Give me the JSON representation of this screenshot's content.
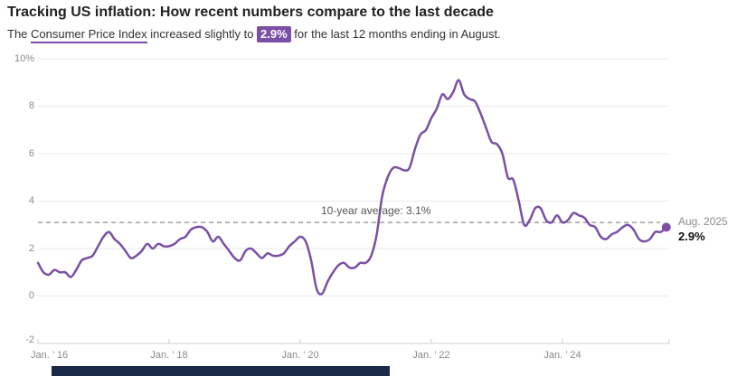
{
  "header": {
    "title": "Tracking US inflation: How recent numbers compare to the last decade",
    "subtitle_prefix": "The ",
    "subtitle_link": "Consumer Price Index",
    "subtitle_mid": " increased slightly to ",
    "subtitle_badge": "2.9%",
    "subtitle_suffix": " for the last 12 months ending in August."
  },
  "chart_data": {
    "type": "line",
    "title": "Tracking US inflation: How recent numbers compare to the last decade",
    "subtitle": "The Consumer Price Index increased slightly to 2.9% for the last 12 months ending in August.",
    "x_start": "Jan 2016",
    "x_end": "Aug 2025",
    "x_frequency": "monthly",
    "series": [
      {
        "name": "CPI year-over-year % change",
        "values": [
          1.4,
          1.0,
          0.9,
          1.1,
          1.0,
          1.0,
          0.8,
          1.1,
          1.5,
          1.6,
          1.7,
          2.1,
          2.5,
          2.7,
          2.4,
          2.2,
          1.9,
          1.6,
          1.7,
          1.9,
          2.2,
          2.0,
          2.2,
          2.1,
          2.1,
          2.2,
          2.4,
          2.5,
          2.8,
          2.9,
          2.9,
          2.7,
          2.3,
          2.5,
          2.2,
          1.9,
          1.6,
          1.5,
          1.9,
          2.0,
          1.8,
          1.6,
          1.8,
          1.7,
          1.7,
          1.8,
          2.1,
          2.3,
          2.5,
          2.3,
          1.5,
          0.3,
          0.1,
          0.6,
          1.0,
          1.3,
          1.4,
          1.2,
          1.2,
          1.4,
          1.4,
          1.7,
          2.6,
          4.2,
          5.0,
          5.4,
          5.4,
          5.3,
          5.4,
          6.2,
          6.8,
          7.0,
          7.5,
          7.9,
          8.5,
          8.3,
          8.6,
          9.1,
          8.5,
          8.3,
          8.2,
          7.7,
          7.1,
          6.5,
          6.4,
          6.0,
          5.0,
          4.9,
          4.0,
          3.0,
          3.2,
          3.7,
          3.7,
          3.2,
          3.1,
          3.4,
          3.1,
          3.2,
          3.5,
          3.4,
          3.3,
          3.0,
          2.9,
          2.5,
          2.4,
          2.6,
          2.7,
          2.9,
          3.0,
          2.8,
          2.4,
          2.3,
          2.4,
          2.7,
          2.7,
          2.9
        ]
      }
    ],
    "ylim": [
      -2,
      10
    ],
    "y_tick_values": [
      10,
      8,
      6,
      4,
      2,
      0,
      -2
    ],
    "y_tick_labels": [
      "10%",
      "8",
      "6",
      "4",
      "2",
      "0",
      "-2"
    ],
    "x_tick_labels": [
      "Jan. ’ 16",
      "Jan. ’ 18",
      "Jan. ’ 20",
      "Jan. ’ 22",
      "Jan. ’ 24"
    ],
    "grid": "horizontal",
    "legend_position": "none",
    "average_line": {
      "value": 3.1,
      "label": "10-year average: 3.1%",
      "style": "dashed"
    },
    "end_label": {
      "date": "Aug. 2025",
      "value": "2.9%"
    },
    "colors": {
      "line": "#7a4fa5",
      "accent": "#7a4fa5",
      "gridline": "#e9e9e9",
      "baseline": "#cccccc",
      "dashed": "#8c8c8c",
      "end_dot": "#7a4fa5",
      "bottom_bar": "#1c2a4a"
    }
  }
}
